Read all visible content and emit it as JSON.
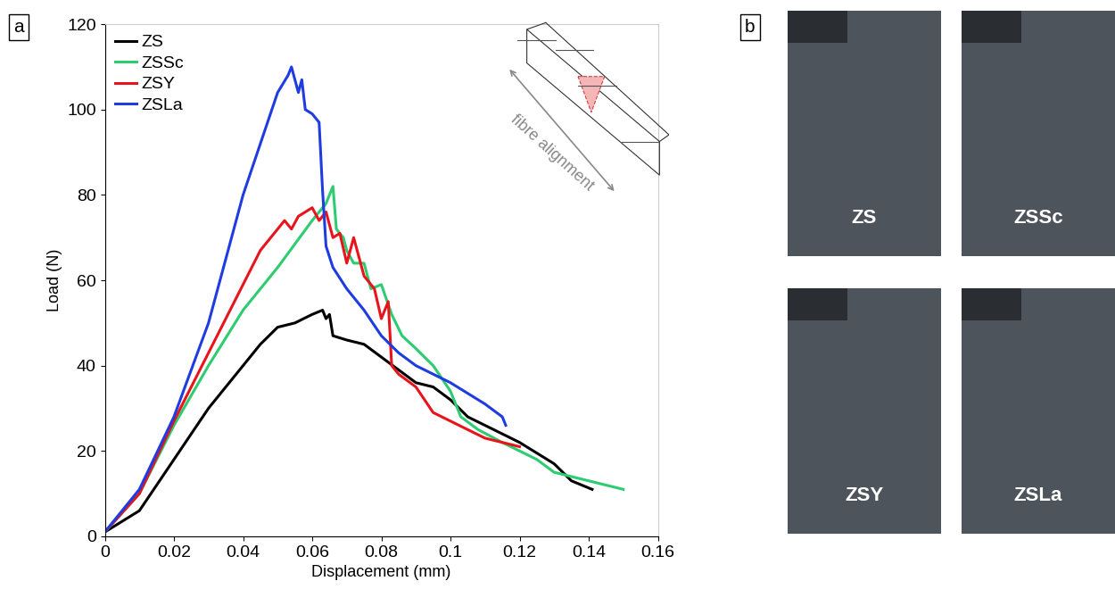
{
  "chart_data": {
    "type": "line",
    "panel_label": "a",
    "xlabel": "Displacement (mm)",
    "ylabel": "Load (N)",
    "xlim": [
      0,
      0.16
    ],
    "ylim": [
      0,
      120
    ],
    "xticks": [
      0,
      0.02,
      0.04,
      0.06,
      0.08,
      0.1,
      0.12,
      0.14,
      0.16
    ],
    "yticks": [
      0,
      20,
      40,
      60,
      80,
      100,
      120
    ],
    "legend": "upper left",
    "inset_text": "fibre alignment",
    "series": [
      {
        "name": "ZS",
        "color": "#000000",
        "x": [
          0,
          0.01,
          0.02,
          0.03,
          0.04,
          0.045,
          0.05,
          0.055,
          0.06,
          0.063,
          0.064,
          0.065,
          0.066,
          0.07,
          0.075,
          0.08,
          0.085,
          0.09,
          0.095,
          0.1,
          0.105,
          0.11,
          0.12,
          0.13,
          0.135,
          0.141
        ],
        "values": [
          1,
          6,
          18,
          30,
          40,
          45,
          49,
          50,
          52,
          53,
          51,
          52,
          47,
          46,
          45,
          42,
          39,
          36,
          35,
          32,
          28,
          26,
          22,
          17,
          13,
          11
        ]
      },
      {
        "name": "ZSSc",
        "color": "#2ecc71",
        "x": [
          0,
          0.01,
          0.02,
          0.03,
          0.04,
          0.05,
          0.06,
          0.064,
          0.066,
          0.067,
          0.069,
          0.07,
          0.072,
          0.075,
          0.077,
          0.08,
          0.083,
          0.086,
          0.09,
          0.095,
          0.1,
          0.103,
          0.108,
          0.115,
          0.12,
          0.125,
          0.13,
          0.14,
          0.15
        ],
        "values": [
          1,
          10,
          26,
          40,
          53,
          63,
          74,
          78,
          82,
          72,
          70,
          67,
          64,
          64,
          58,
          59,
          52,
          47,
          44,
          40,
          34,
          28,
          25,
          22,
          20,
          18,
          15,
          13,
          11
        ]
      },
      {
        "name": "ZSY",
        "color": "#e8141b",
        "x": [
          0,
          0.01,
          0.02,
          0.03,
          0.04,
          0.045,
          0.05,
          0.052,
          0.054,
          0.056,
          0.058,
          0.06,
          0.062,
          0.064,
          0.066,
          0.068,
          0.07,
          0.072,
          0.075,
          0.078,
          0.08,
          0.082,
          0.083,
          0.085,
          0.09,
          0.095,
          0.1,
          0.11,
          0.12
        ],
        "values": [
          1,
          10,
          27,
          43,
          59,
          67,
          72,
          74,
          72,
          75,
          76,
          77,
          74,
          76,
          70,
          71,
          64,
          70,
          61,
          58,
          51,
          55,
          40,
          38,
          35,
          29,
          27,
          23,
          21
        ]
      },
      {
        "name": "ZSLa",
        "color": "#1f3ce0",
        "x": [
          0,
          0.01,
          0.02,
          0.03,
          0.04,
          0.045,
          0.05,
          0.053,
          0.054,
          0.056,
          0.057,
          0.058,
          0.06,
          0.062,
          0.063,
          0.064,
          0.066,
          0.07,
          0.075,
          0.08,
          0.085,
          0.09,
          0.1,
          0.11,
          0.115,
          0.116
        ],
        "values": [
          1,
          11,
          28,
          50,
          80,
          92,
          104,
          108,
          110,
          104,
          107,
          100,
          99,
          97,
          81,
          68,
          63,
          58,
          53,
          47,
          43,
          40,
          36,
          31,
          28,
          26
        ]
      }
    ]
  },
  "photos": {
    "panel_label": "b",
    "labels": [
      "ZS",
      "ZSSc",
      "ZSY",
      "ZSLa"
    ]
  }
}
